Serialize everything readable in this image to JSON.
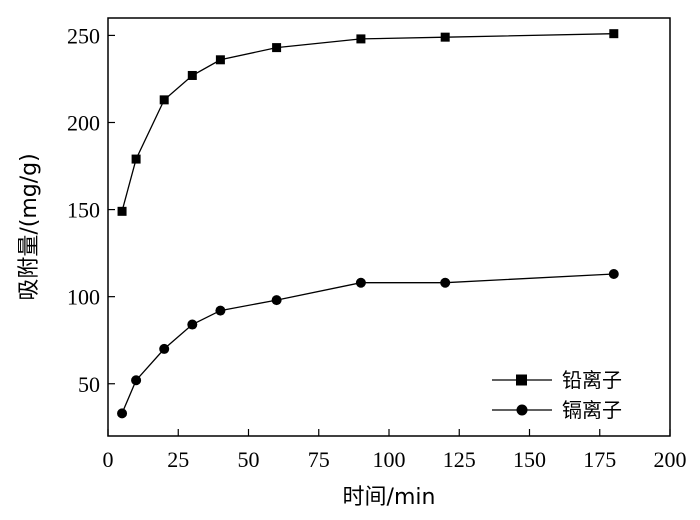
{
  "chart_data": {
    "type": "line",
    "title": "",
    "xlabel": "时间/min",
    "ylabel": "吸附量/(mg/g)",
    "xlim": [
      0,
      200
    ],
    "ylim": [
      20,
      260
    ],
    "xticks": [
      0,
      25,
      50,
      75,
      100,
      125,
      150,
      175,
      200
    ],
    "yticks": [
      50,
      100,
      150,
      200,
      250
    ],
    "grid": false,
    "legend_position": "bottom-right",
    "series": [
      {
        "name": "铅离子",
        "marker": "square",
        "color": "#000000",
        "x": [
          5,
          10,
          20,
          30,
          40,
          60,
          90,
          120,
          180
        ],
        "y": [
          149,
          179,
          213,
          227,
          236,
          243,
          248,
          249,
          251
        ]
      },
      {
        "name": "镉离子",
        "marker": "circle",
        "color": "#000000",
        "x": [
          5,
          10,
          20,
          30,
          40,
          60,
          90,
          120,
          180
        ],
        "y": [
          33,
          52,
          70,
          84,
          92,
          98,
          108,
          108,
          113
        ]
      }
    ]
  }
}
